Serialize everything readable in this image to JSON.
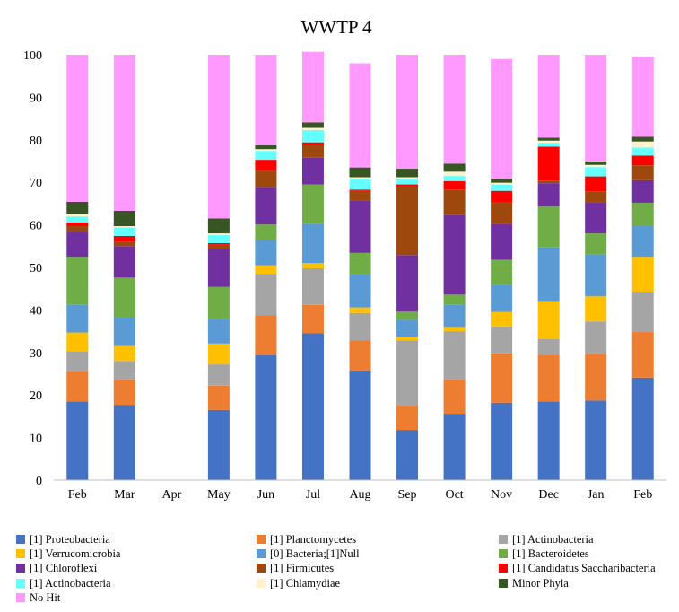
{
  "chart_data": {
    "type": "bar",
    "stacked": true,
    "title": "WWTP 4",
    "xlabel": "",
    "ylabel": "",
    "ylim": [
      0,
      100
    ],
    "yticks": [
      0,
      10,
      20,
      30,
      40,
      50,
      60,
      70,
      80,
      90,
      100
    ],
    "grid": false,
    "legend_position": "bottom",
    "categories": [
      "Feb",
      "Mar",
      "Apr",
      "May",
      "Jun",
      "Jul",
      "Aug",
      "Sep",
      "Oct",
      "Nov",
      "Dec",
      "Jan",
      "Feb"
    ],
    "series": [
      {
        "name": "[1] Proteobacteria",
        "color": "#4472C4",
        "values": [
          18.5,
          17.7,
          0,
          16.5,
          29.4,
          34.5,
          25.8,
          11.8,
          15.6,
          18.2,
          18.5,
          18.7,
          24.1
        ]
      },
      {
        "name": "[1] Planctomycetes",
        "color": "#ED7D31",
        "values": [
          7.2,
          6.0,
          0,
          5.7,
          9.4,
          6.7,
          7.0,
          5.7,
          8.1,
          11.6,
          11.0,
          11.0,
          10.7
        ]
      },
      {
        "name": "[1] Actinobacteria",
        "color": "#A5A5A5",
        "values": [
          4.6,
          4.3,
          0,
          5.0,
          9.7,
          8.6,
          6.5,
          15.3,
          11.3,
          6.3,
          3.7,
          7.6,
          9.5
        ]
      },
      {
        "name": "[1] Verrucomicrobia",
        "color": "#FFC000",
        "values": [
          4.4,
          3.5,
          0,
          4.9,
          2.0,
          1.2,
          1.3,
          0.9,
          1.0,
          3.4,
          8.9,
          5.9,
          8.2
        ]
      },
      {
        "name": "[0] Bacteria;[1]Null",
        "color": "#5B9BD5",
        "values": [
          6.5,
          6.8,
          0,
          5.7,
          6.0,
          9.2,
          7.8,
          4.0,
          5.3,
          6.3,
          12.7,
          9.9,
          7.2
        ]
      },
      {
        "name": "[1] Bacteroidetes",
        "color": "#70AD47",
        "values": [
          11.3,
          9.3,
          0,
          7.6,
          3.6,
          9.3,
          5.0,
          1.9,
          2.3,
          6.0,
          9.5,
          4.9,
          5.5
        ]
      },
      {
        "name": "[1] Chloroflexi",
        "color": "#7030A0",
        "values": [
          5.9,
          7.4,
          0,
          8.9,
          8.8,
          6.3,
          12.3,
          13.3,
          18.7,
          8.5,
          5.5,
          7.2,
          5.3
        ]
      },
      {
        "name": "[1] Firmicutes",
        "color": "#9E480E",
        "values": [
          1.3,
          1.1,
          0,
          1.0,
          3.8,
          2.9,
          2.3,
          16.2,
          6.0,
          5.1,
          0.6,
          2.7,
          3.5
        ]
      },
      {
        "name": "[1] Candidatus Saccharibacteria",
        "color": "#FF0000",
        "values": [
          0.9,
          1.3,
          0,
          0.4,
          2.6,
          0.7,
          0.3,
          0.4,
          2.0,
          2.6,
          8.0,
          3.5,
          2.3
        ]
      },
      {
        "name": "[1] Actinobacteria",
        "color": "#66FFFF",
        "values": [
          1.4,
          2.0,
          0,
          1.9,
          2.1,
          2.9,
          2.4,
          1.3,
          1.2,
          1.5,
          0.9,
          2.2,
          1.9
        ]
      },
      {
        "name": "[1] Chlamydiae",
        "color": "#FFF2CC",
        "values": [
          0.5,
          0.3,
          0,
          0.4,
          0.4,
          0.5,
          0.5,
          0.4,
          1.0,
          0.4,
          0.5,
          0.5,
          1.4
        ]
      },
      {
        "name": "Minor Phyla",
        "color": "#375623",
        "values": [
          2.9,
          3.6,
          0,
          3.5,
          0.9,
          1.3,
          2.3,
          2.0,
          1.9,
          1.0,
          0.7,
          0.8,
          1.1
        ]
      },
      {
        "name": "No Hit",
        "color": "#FF99FF",
        "values": [
          34.6,
          36.7,
          0,
          38.5,
          21.3,
          16.6,
          24.5,
          26.8,
          25.6,
          28.1,
          19.5,
          25.1,
          18.9
        ]
      }
    ]
  }
}
